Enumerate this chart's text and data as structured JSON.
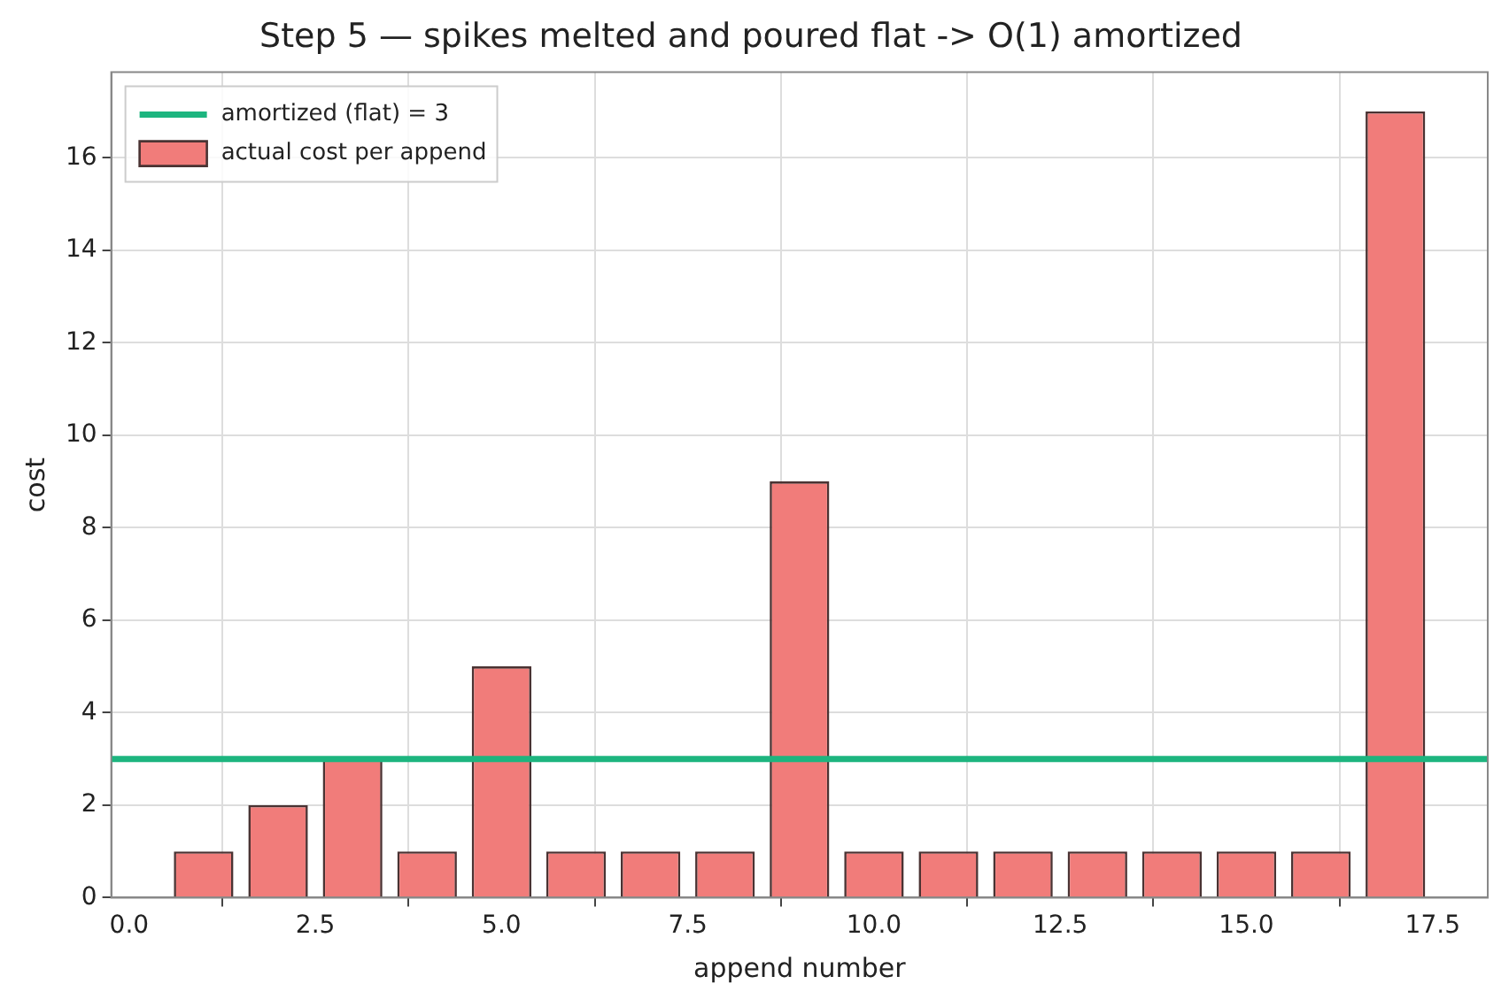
{
  "chart_data": {
    "type": "bar",
    "title": "Step 5 — spikes melted and poured flat -> O(1) amortized",
    "xlabel": "append number",
    "ylabel": "cost",
    "x": [
      1,
      2,
      3,
      4,
      5,
      6,
      7,
      8,
      9,
      10,
      11,
      12,
      13,
      14,
      15,
      16,
      17
    ],
    "series": [
      {
        "name": "actual cost per append",
        "color": "#f17c7a",
        "values": [
          1,
          2,
          3,
          1,
          5,
          1,
          1,
          1,
          9,
          1,
          1,
          1,
          1,
          1,
          1,
          1,
          17
        ]
      }
    ],
    "ref_lines": [
      {
        "axis": "y",
        "value": 3,
        "label": "amortized (flat) = 3",
        "color": "#1db57f"
      }
    ],
    "xlim": [
      -0.24,
      18.24
    ],
    "xticks": [
      {
        "value": 0,
        "label": "0.0"
      },
      2.5,
      {
        "value": 5,
        "label": "5.0"
      },
      7.5,
      {
        "value": 10,
        "label": "10.0"
      },
      12.5,
      {
        "value": 15,
        "label": "15.0"
      },
      17.5
    ],
    "ylim": [
      0,
      17.85
    ],
    "yticks": [
      0,
      2,
      4,
      6,
      8,
      10,
      12,
      14,
      16
    ],
    "grid": true,
    "legend": "top left"
  }
}
